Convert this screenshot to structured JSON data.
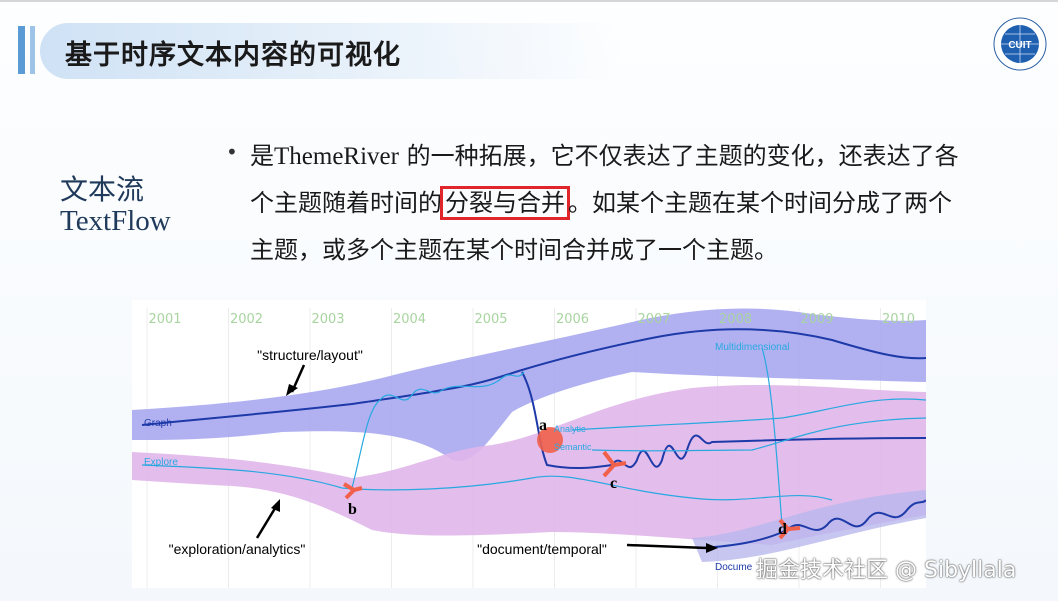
{
  "slide": {
    "title": "基于时序文本内容的可视化",
    "logo_text": "CUIT",
    "side_label_cn": "文本流",
    "side_label_en": "TextFlow",
    "bullet": "•",
    "lines": [
      {
        "pre": "是",
        "en": "ThemeRiver",
        "post": " 的一种拓展，它不仅表达了主题的变化，还表达了各"
      },
      {
        "pre": "个主题随着时间的",
        "highlight": "分裂与合并",
        "post": "。如某个主题在某个时间分成了两个"
      },
      {
        "pre": "主题，或多个主题在某个时间合并成了一个主题。"
      }
    ],
    "highlight_color": "#e0262b"
  },
  "figure": {
    "years": [
      "2001",
      "2002",
      "2003",
      "2004",
      "2005",
      "2006",
      "2007",
      "2008",
      "2009",
      "2010"
    ],
    "topic_labels": {
      "graph": "Graph",
      "explore": "Explore",
      "analytic": "Analytic",
      "semantic": "Semantic",
      "multidimensional": "Multidimensional",
      "document": "Docume"
    },
    "annotations": {
      "structure": "\"structure/layout\"",
      "exploration": "\"exploration/analytics\"",
      "document": "\"document/temporal\""
    },
    "events": {
      "a": "a",
      "b": "b",
      "c": "c",
      "d": "d"
    },
    "colors": {
      "band_blue": "#a8a8f0",
      "band_pink": "#e6b4ea",
      "line_dark": "#1e3aa8",
      "line_light": "#29a8e0",
      "event": "#f0604a",
      "year": "#a8d4a0"
    }
  },
  "watermark": "掘金技术社区 @ Sibyllala"
}
